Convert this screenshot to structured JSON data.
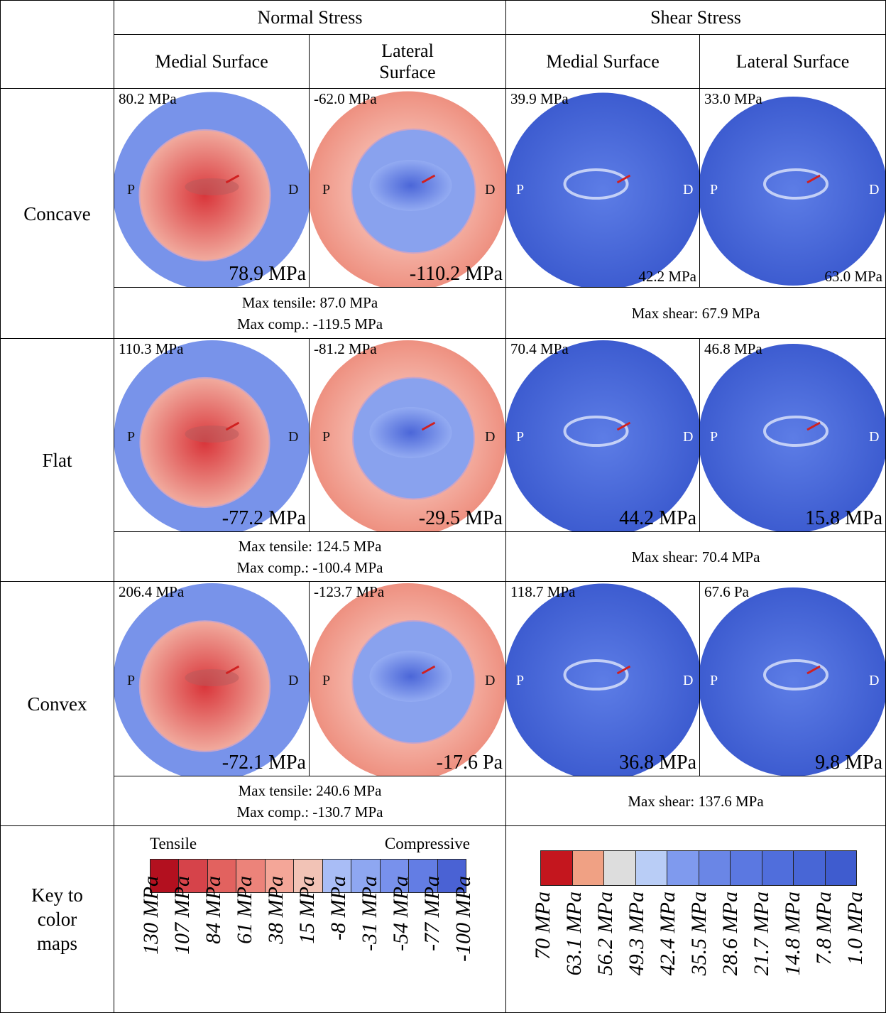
{
  "header": {
    "normal": "Normal Stress",
    "shear": "Shear Stress",
    "sub": [
      "Medial Surface",
      "Lateral Surface",
      "Medial Surface",
      "Lateral Surface"
    ]
  },
  "markers": {
    "proximal": "P",
    "distal": "D"
  },
  "rows": [
    {
      "label": "Concave",
      "maps": [
        {
          "top": "80.2 MPa",
          "bottom": "78.9 MPa"
        },
        {
          "top": "-62.0 MPa",
          "bottom": "-110.2 MPa"
        },
        {
          "top": "39.9 MPa",
          "bottom": "42.2 MPa"
        },
        {
          "top": "33.0 MPa",
          "bottom": "63.0 MPa"
        }
      ],
      "normal_summary": [
        "Max tensile: 87.0 MPa",
        "Max comp.: -119.5 MPa"
      ],
      "shear_summary": "Max shear: 67.9 MPa"
    },
    {
      "label": "Flat",
      "maps": [
        {
          "top": "110.3 MPa",
          "bottom": "-77.2 MPa"
        },
        {
          "top": "-81.2 MPa",
          "bottom": "-29.5 MPa"
        },
        {
          "top": "70.4 MPa",
          "bottom": "44.2 MPa"
        },
        {
          "top": "46.8 MPa",
          "bottom": "15.8 MPa"
        }
      ],
      "normal_summary": [
        "Max tensile: 124.5 MPa",
        "Max comp.: -100.4 MPa"
      ],
      "shear_summary": "Max shear: 70.4 MPa"
    },
    {
      "label": "Convex",
      "maps": [
        {
          "top": "206.4 MPa",
          "bottom": "-72.1 MPa"
        },
        {
          "top": "-123.7 MPa",
          "bottom": "-17.6 Pa"
        },
        {
          "top": "118.7 MPa",
          "bottom": "36.8 MPa"
        },
        {
          "top": "67.6 Pa",
          "bottom": "9.8 MPa"
        }
      ],
      "normal_summary": [
        "Max tensile: 240.6 MPa",
        "Max comp.: -130.7 MPa"
      ],
      "shear_summary": "Max shear: 137.6 MPa"
    }
  ],
  "key": {
    "label": "Key to color maps",
    "tensile": "Tensile",
    "compressive": "Compressive",
    "normal_colors": [
      "#b3101f",
      "#d6434a",
      "#e2625f",
      "#ec837a",
      "#f4a698",
      "#f2c3b6",
      "#a9bdf6",
      "#8ea7f1",
      "#7891ec",
      "#637de4",
      "#4a62d4"
    ],
    "normal_ticks": [
      "130 MPa",
      "107 MPa",
      "84 MPa",
      "61 MPa",
      "38 MPa",
      "15 MPa",
      "-8 MPa",
      "-31 MPa",
      "-54 MPa",
      "-77 MPa",
      "-100 MPa"
    ],
    "shear_colors": [
      "#c4161e",
      "#f0a184",
      "#dddddd",
      "#b9cdf6",
      "#7f9aee",
      "#6a86e6",
      "#5b78e1",
      "#506edc",
      "#4866d6",
      "#3f5ccf"
    ],
    "shear_ticks": [
      "70 MPa",
      "63.1 MPa",
      "56.2 MPa",
      "49.3 MPa",
      "42.4 MPa",
      "35.5 MPa",
      "28.6 MPa",
      "21.7 MPa",
      "14.8 MPa",
      "7.8 MPa",
      "1.0 MPa"
    ]
  }
}
